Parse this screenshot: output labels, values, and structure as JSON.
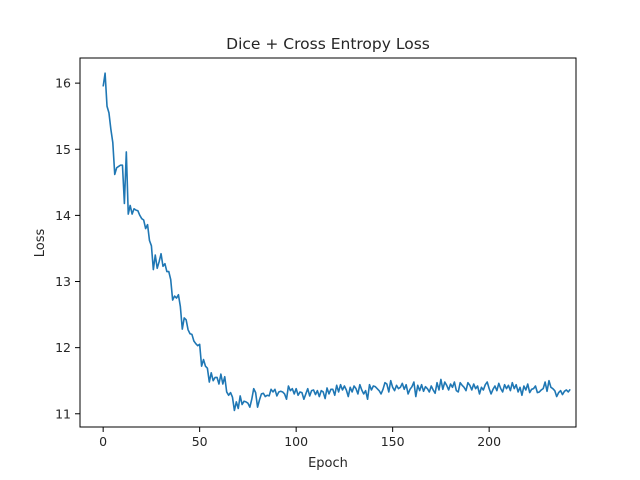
{
  "chart_data": {
    "type": "line",
    "title": "Dice + Cross Entropy Loss",
    "xlabel": "Epoch",
    "ylabel": "Loss",
    "xlim": [
      -12,
      245
    ],
    "ylim": [
      10.8,
      16.38
    ],
    "xticks": [
      0,
      50,
      100,
      150,
      200
    ],
    "yticks": [
      11,
      12,
      13,
      14,
      15,
      16
    ],
    "grid": false,
    "line_color": "#1f77b4",
    "series": [
      {
        "values": [
          15.95,
          16.15,
          15.65,
          15.55,
          15.3,
          15.1,
          14.62,
          14.72,
          14.74,
          14.76,
          14.76,
          14.18,
          14.96,
          14.02,
          14.15,
          14.02,
          14.1,
          14.08,
          14.07,
          14.0,
          13.95,
          13.93,
          13.8,
          13.86,
          13.62,
          13.54,
          13.18,
          13.4,
          13.2,
          13.3,
          13.42,
          13.23,
          13.27,
          13.15,
          13.15,
          13.03,
          12.72,
          12.78,
          12.75,
          12.8,
          12.62,
          12.28,
          12.45,
          12.42,
          12.27,
          12.21,
          12.2,
          12.1,
          12.06,
          12.03,
          12.05,
          11.72,
          11.82,
          11.72,
          11.69,
          11.48,
          11.62,
          11.5,
          11.55,
          11.55,
          11.45,
          11.6,
          11.45,
          11.56,
          11.33,
          11.28,
          11.32,
          11.25,
          11.05,
          11.18,
          11.08,
          11.27,
          11.14,
          11.19,
          11.18,
          11.16,
          11.1,
          11.22,
          11.38,
          11.32,
          11.1,
          11.21,
          11.3,
          11.31,
          11.26,
          11.28,
          11.27,
          11.37,
          11.33,
          11.37,
          11.27,
          11.33,
          11.34,
          11.33,
          11.3,
          11.22,
          11.42,
          11.35,
          11.38,
          11.3,
          11.38,
          11.28,
          11.33,
          11.32,
          11.22,
          11.3,
          11.38,
          11.27,
          11.35,
          11.36,
          11.29,
          11.35,
          11.26,
          11.35,
          11.33,
          11.23,
          11.39,
          11.3,
          11.37,
          11.37,
          11.28,
          11.43,
          11.33,
          11.44,
          11.36,
          11.42,
          11.36,
          11.26,
          11.4,
          11.33,
          11.42,
          11.38,
          11.3,
          11.44,
          11.36,
          11.3,
          11.35,
          11.22,
          11.44,
          11.36,
          11.42,
          11.41,
          11.38,
          11.35,
          11.3,
          11.37,
          11.47,
          11.45,
          11.33,
          11.5,
          11.4,
          11.35,
          11.43,
          11.38,
          11.4,
          11.46,
          11.37,
          11.44,
          11.3,
          11.37,
          11.41,
          11.48,
          11.26,
          11.43,
          11.35,
          11.44,
          11.34,
          11.41,
          11.38,
          11.33,
          11.42,
          11.36,
          11.31,
          11.47,
          11.36,
          11.52,
          11.37,
          11.48,
          11.43,
          11.36,
          11.45,
          11.4,
          11.48,
          11.35,
          11.33,
          11.47,
          11.43,
          11.4,
          11.35,
          11.47,
          11.43,
          11.36,
          11.45,
          11.38,
          11.42,
          11.3,
          11.4,
          11.36,
          11.44,
          11.48,
          11.38,
          11.3,
          11.37,
          11.42,
          11.35,
          11.46,
          11.38,
          11.33,
          11.44,
          11.38,
          11.43,
          11.35,
          11.47,
          11.38,
          11.44,
          11.33,
          11.4,
          11.28,
          11.42,
          11.36,
          11.45,
          11.32,
          11.37,
          11.38,
          11.42,
          11.32,
          11.33,
          11.36,
          11.38,
          11.48,
          11.34,
          11.5,
          11.4,
          11.38,
          11.35,
          11.26,
          11.32,
          11.35,
          11.29,
          11.34,
          11.36,
          11.33,
          11.37
        ]
      }
    ]
  }
}
